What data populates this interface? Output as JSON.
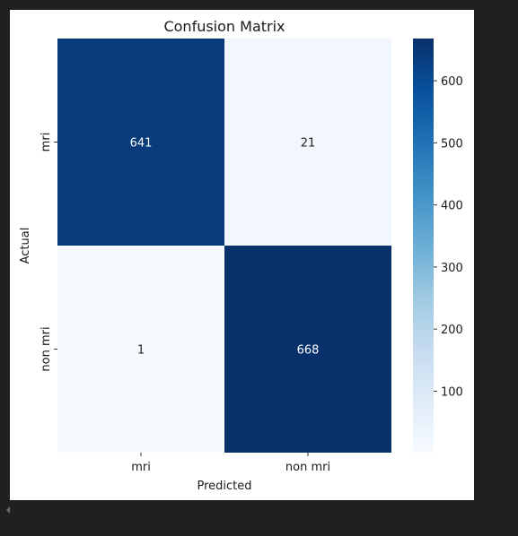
{
  "chart_data": {
    "type": "heatmap",
    "title": "Confusion Matrix",
    "xlabel": "Predicted",
    "ylabel": "Actual",
    "x_categories": [
      "mri",
      "non mri"
    ],
    "y_categories": [
      "mri",
      "non mri"
    ],
    "values": [
      [
        641,
        21
      ],
      [
        1,
        668
      ]
    ],
    "colormap": "Blues",
    "colorbar": {
      "min": 1,
      "max": 668,
      "ticks": [
        100,
        200,
        300,
        400,
        500,
        600
      ]
    },
    "annotated": true,
    "grid": false
  }
}
